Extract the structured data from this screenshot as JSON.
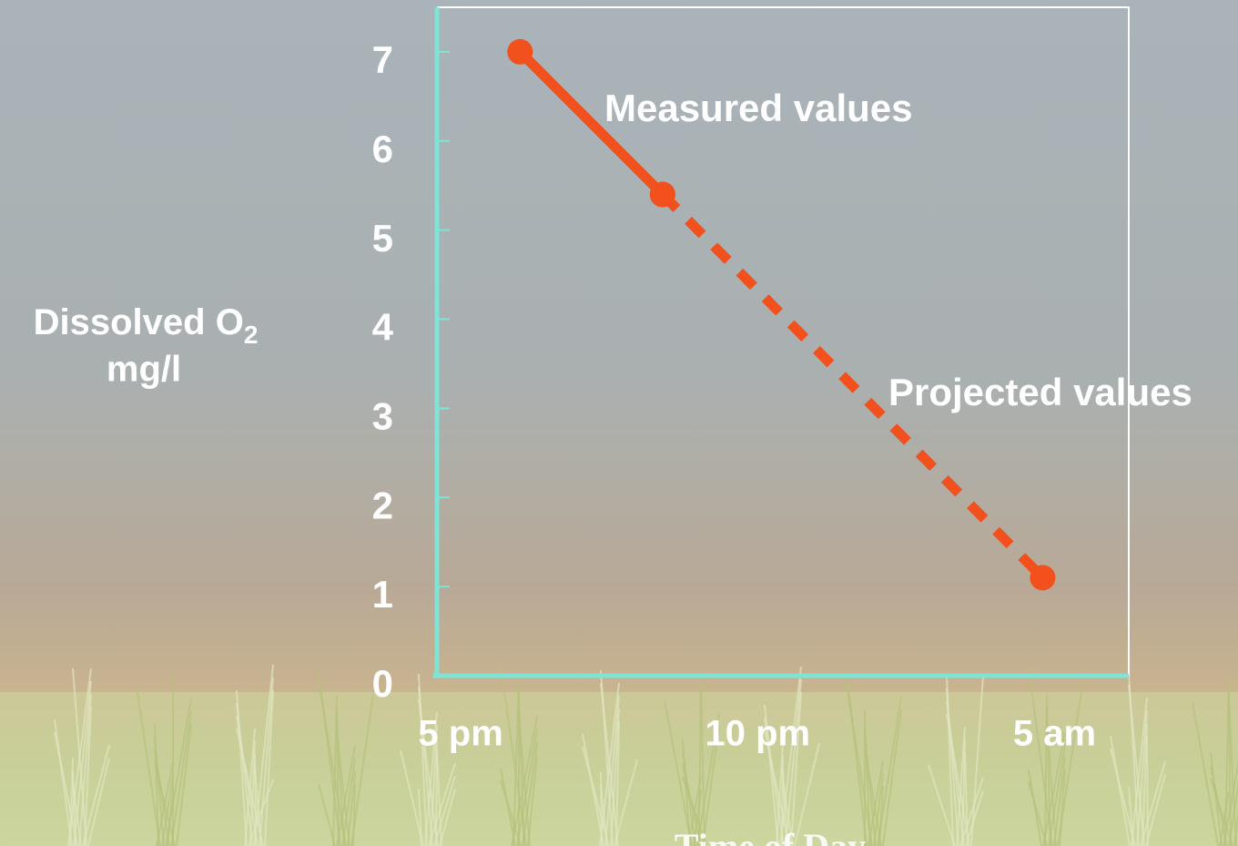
{
  "chart_data": {
    "type": "line",
    "y_label": {
      "text": "Dissolved O",
      "subscript": "2",
      "unit": "mg/l"
    },
    "x_label": "Time of Day",
    "x": [
      0.2,
      0.68,
      1.96
    ],
    "series": [
      {
        "name": "Measured values",
        "color": "#f2501c",
        "style": "solid",
        "values": [
          7.0,
          5.4,
          null
        ]
      },
      {
        "name": "Projected values",
        "color": "#f2501c",
        "style": "dashed",
        "values": [
          null,
          5.4,
          1.1
        ]
      }
    ],
    "xlim": [
      -0.08,
      2.25
    ],
    "xticks": [
      {
        "value": 0,
        "label": "5 pm"
      },
      {
        "value": 1,
        "label": "10 pm"
      },
      {
        "value": 2,
        "label": "5 am"
      }
    ],
    "ylim": [
      0,
      7.5
    ],
    "yticks": [
      0,
      1,
      2,
      3,
      4,
      5,
      6,
      7
    ]
  }
}
